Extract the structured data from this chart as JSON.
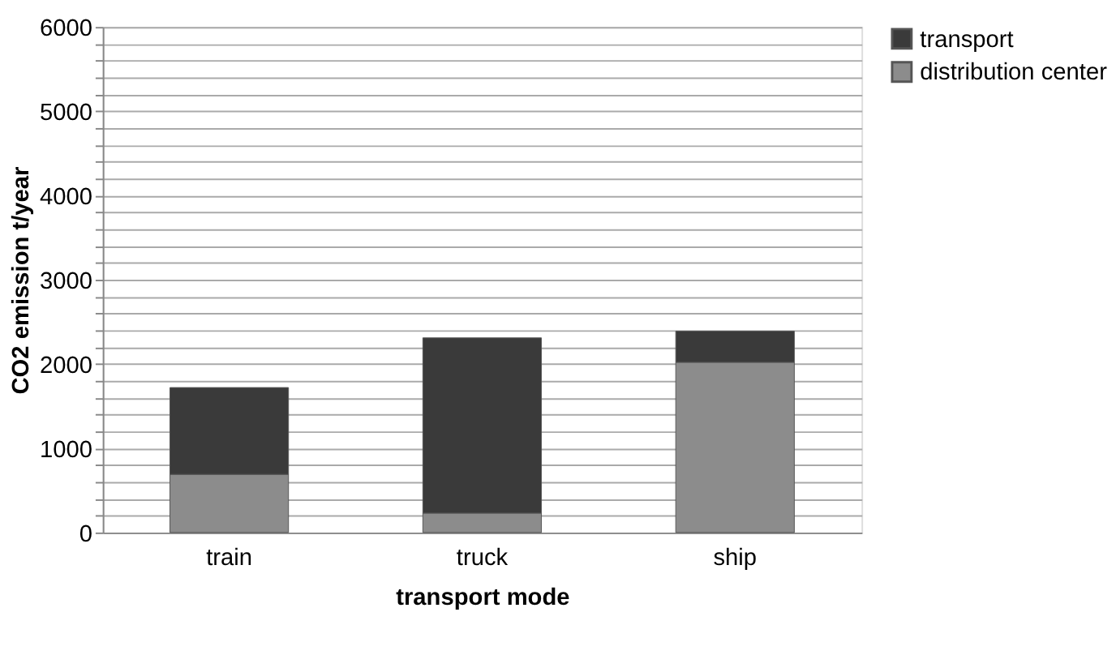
{
  "chart_data": {
    "type": "bar",
    "stacked": true,
    "xlabel": "transport mode",
    "ylabel": "CO2 emission t/year",
    "categories": [
      "train",
      "truck",
      "ship"
    ],
    "series": [
      {
        "name": "distribution center",
        "color": "#8c8c8c",
        "values": [
          690,
          230,
          2020
        ]
      },
      {
        "name": "transport",
        "color": "#3a3a3a",
        "values": [
          1030,
          2080,
          370
        ]
      }
    ],
    "ylim": [
      0,
      6000
    ],
    "yticks": [
      0,
      {
        "value": 200,
        "label": null
      },
      {
        "value": 400,
        "label": null
      },
      {
        "value": 600,
        "label": null
      },
      {
        "value": 800,
        "label": null
      },
      1000,
      {
        "value": 1200,
        "label": null
      },
      {
        "value": 1400,
        "label": null
      },
      {
        "value": 1600,
        "label": null
      },
      {
        "value": 1800,
        "label": null
      },
      2000,
      {
        "value": 2200,
        "label": null
      },
      {
        "value": 2400,
        "label": null
      },
      {
        "value": 2600,
        "label": null
      },
      {
        "value": 2800,
        "label": null
      },
      3000,
      {
        "value": 3200,
        "label": null
      },
      {
        "value": 3400,
        "label": null
      },
      {
        "value": 3600,
        "label": null
      },
      {
        "value": 3800,
        "label": null
      },
      4000,
      {
        "value": 4200,
        "label": null
      },
      {
        "value": 4400,
        "label": null
      },
      {
        "value": 4600,
        "label": null
      },
      {
        "value": 4800,
        "label": null
      },
      5000,
      {
        "value": 5200,
        "label": null
      },
      {
        "value": 5400,
        "label": null
      },
      {
        "value": 5600,
        "label": null
      },
      {
        "value": 5800,
        "label": null
      },
      6000
    ],
    "grid": "y",
    "legend": "right"
  }
}
